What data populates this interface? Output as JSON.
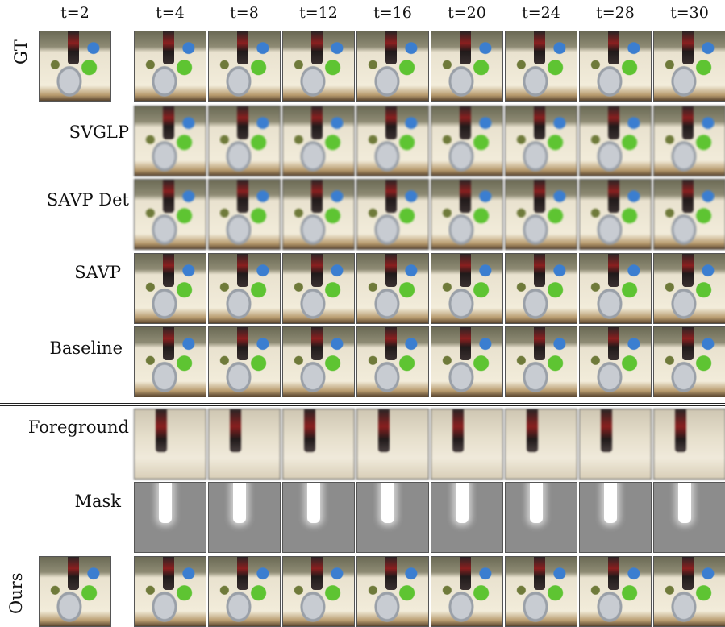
{
  "columns": [
    "t=2",
    "t=4",
    "t=8",
    "t=12",
    "t=16",
    "t=20",
    "t=24",
    "t=28",
    "t=30"
  ],
  "rows": {
    "gt": "GT",
    "svglp": "SVGLP",
    "savp_det": "SAVP Det",
    "savp": "SAVP",
    "baseline": "Baseline",
    "foreground": "Foreground",
    "mask": "Mask",
    "ours": "Ours"
  }
}
